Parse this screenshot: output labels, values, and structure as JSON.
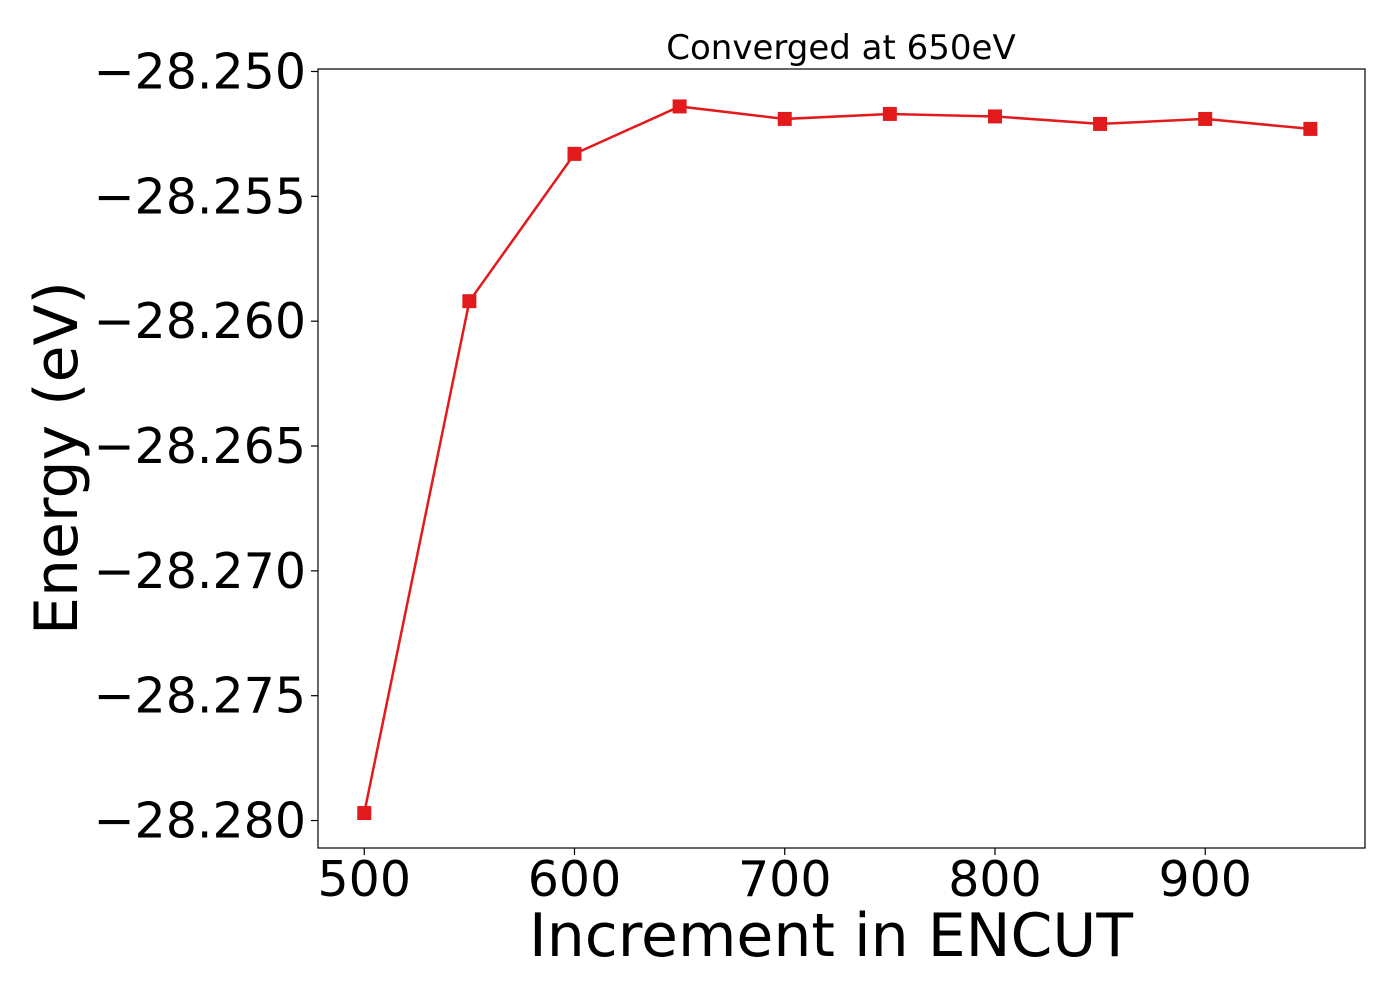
{
  "chart_data": {
    "type": "line",
    "title": "Converged at 650eV",
    "xlabel": "Increment in ENCUT",
    "ylabel": "Energy (eV)",
    "x": [
      500,
      550,
      600,
      650,
      700,
      750,
      800,
      850,
      900,
      950
    ],
    "series": [
      {
        "values": [
          -28.2797,
          -28.2592,
          -28.2533,
          -28.2514,
          -28.2519,
          -28.2517,
          -28.2518,
          -28.2521,
          -28.2519,
          -28.2523
        ],
        "color": "#e31a1c",
        "marker": "square"
      }
    ],
    "xlim": [
      478,
      976
    ],
    "ylim": [
      -28.2811,
      -28.2499
    ],
    "xticks": [
      500,
      600,
      700,
      800,
      900
    ],
    "xtick_labels": [
      "500",
      "600",
      "700",
      "800",
      "900"
    ],
    "yticks": [
      -28.25,
      -28.255,
      -28.26,
      -28.265,
      -28.27,
      -28.275,
      -28.28
    ],
    "ytick_labels": [
      "−28.250",
      "−28.255",
      "−28.260",
      "−28.265",
      "−28.270",
      "−28.275",
      "−28.280"
    ],
    "grid": false,
    "legend": "none"
  }
}
